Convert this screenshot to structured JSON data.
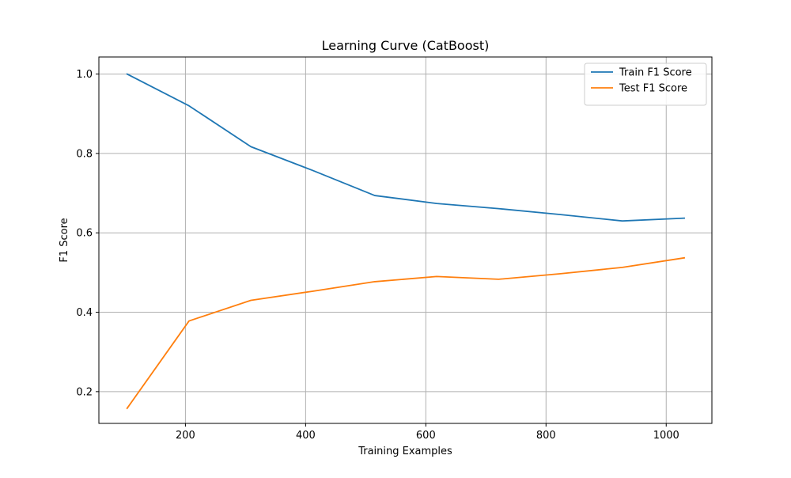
{
  "chart_data": {
    "type": "line",
    "title": "Learning Curve (CatBoost)",
    "xlabel": "Training Examples",
    "ylabel": "F1 Score",
    "xlim": [
      56,
      1076
    ],
    "ylim": [
      0.12,
      1.043
    ],
    "xticks": [
      200,
      400,
      600,
      800,
      1000
    ],
    "xtick_labels": [
      "200",
      "400",
      "600",
      "800",
      "1000"
    ],
    "yticks": [
      0.2,
      0.4,
      0.6,
      0.8,
      1.0
    ],
    "ytick_labels": [
      "0.2",
      "0.4",
      "0.6",
      "0.8",
      "1.0"
    ],
    "grid": true,
    "legend_position": "top-right",
    "x": [
      103,
      206,
      309,
      412,
      515,
      618,
      721,
      824,
      927,
      1030
    ],
    "series": [
      {
        "name": "Train F1 Score",
        "color": "#1f77b4",
        "values": [
          1.0,
          0.92,
          0.817,
          0.757,
          0.694,
          0.674,
          0.661,
          0.646,
          0.63,
          0.637
        ]
      },
      {
        "name": "Test F1 Score",
        "color": "#ff7f0e",
        "values": [
          0.158,
          0.378,
          0.43,
          0.453,
          0.477,
          0.49,
          0.483,
          0.497,
          0.513,
          0.537
        ]
      }
    ]
  }
}
